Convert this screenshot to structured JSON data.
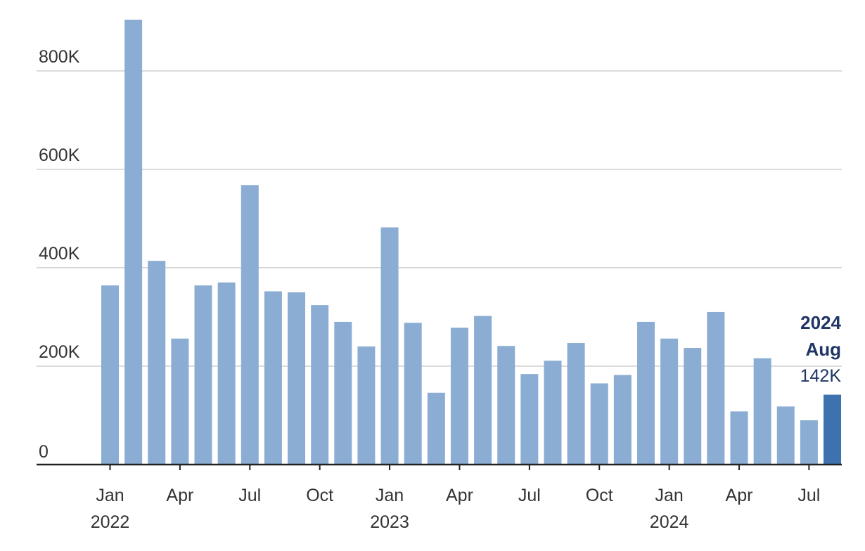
{
  "chart_data": {
    "type": "bar",
    "categories": [
      "Jan 2022",
      "Feb 2022",
      "Mar 2022",
      "Apr 2022",
      "May 2022",
      "Jun 2022",
      "Jul 2022",
      "Aug 2022",
      "Sep 2022",
      "Oct 2022",
      "Nov 2022",
      "Dec 2022",
      "Jan 2023",
      "Feb 2023",
      "Mar 2023",
      "Apr 2023",
      "May 2023",
      "Jun 2023",
      "Jul 2023",
      "Aug 2023",
      "Sep 2023",
      "Oct 2023",
      "Nov 2023",
      "Dec 2023",
      "Jan 2024",
      "Feb 2024",
      "Mar 2024",
      "Apr 2024",
      "May 2024",
      "Jun 2024",
      "Jul 2024",
      "Aug 2024"
    ],
    "values": [
      364,
      904,
      414,
      256,
      364,
      370,
      568,
      352,
      350,
      324,
      290,
      240,
      482,
      288,
      146,
      278,
      302,
      241,
      184,
      211,
      247,
      165,
      182,
      290,
      256,
      237,
      310,
      108,
      216,
      118,
      90,
      142
    ],
    "units": "thousands",
    "ylim": [
      0,
      904
    ],
    "yticks": [
      {
        "value": 0,
        "label": "0"
      },
      {
        "value": 200,
        "label": "200K"
      },
      {
        "value": 400,
        "label": "400K"
      },
      {
        "value": 600,
        "label": "600K"
      },
      {
        "value": 800,
        "label": "800K"
      }
    ],
    "xticks": [
      {
        "index": 0,
        "month": "Jan",
        "year": "2022"
      },
      {
        "index": 3,
        "month": "Apr",
        "year": ""
      },
      {
        "index": 6,
        "month": "Jul",
        "year": ""
      },
      {
        "index": 9,
        "month": "Oct",
        "year": ""
      },
      {
        "index": 12,
        "month": "Jan",
        "year": "2023"
      },
      {
        "index": 15,
        "month": "Apr",
        "year": ""
      },
      {
        "index": 18,
        "month": "Jul",
        "year": ""
      },
      {
        "index": 21,
        "month": "Oct",
        "year": ""
      },
      {
        "index": 24,
        "month": "Jan",
        "year": "2024"
      },
      {
        "index": 27,
        "month": "Apr",
        "year": ""
      },
      {
        "index": 30,
        "month": "Jul",
        "year": ""
      }
    ],
    "highlight_index": 31,
    "callout": {
      "year": "2024",
      "month": "Aug",
      "value": "142K"
    },
    "grid": true,
    "colors": {
      "bar": "#8badd3",
      "highlight": "#3d72ae",
      "grid": "#d0d0d0",
      "axis": "#222222",
      "callout": "#1f3566"
    }
  }
}
